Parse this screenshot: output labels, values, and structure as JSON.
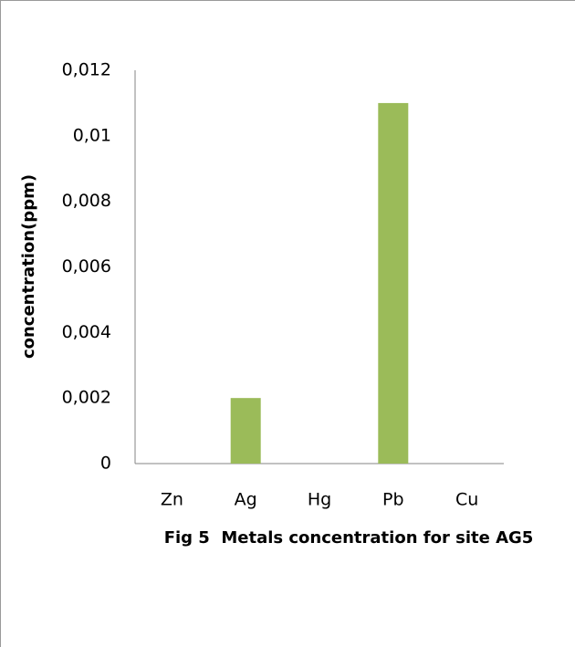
{
  "chart_data": {
    "type": "bar",
    "ylabel": "concentration(ppm)",
    "xlabel": "Fig 5  Metals concentration for site AG5",
    "categories": [
      "Zn",
      "Ag",
      "Hg",
      "Pb",
      "Cu"
    ],
    "values": [
      0,
      0.002,
      0,
      0.011,
      0
    ],
    "color": "#9bbb59",
    "ylim": [
      0,
      0.012
    ],
    "yticks": [
      0,
      {
        "value": 0.002,
        "label": "0,002"
      },
      {
        "value": 0.004,
        "label": "0,004"
      },
      {
        "value": 0.006,
        "label": "0,006"
      },
      {
        "value": 0.008,
        "label": "0,008"
      },
      {
        "value": 0.01,
        "label": "0,01"
      },
      {
        "value": 0.012,
        "label": "0,012"
      }
    ],
    "grid": false
  }
}
